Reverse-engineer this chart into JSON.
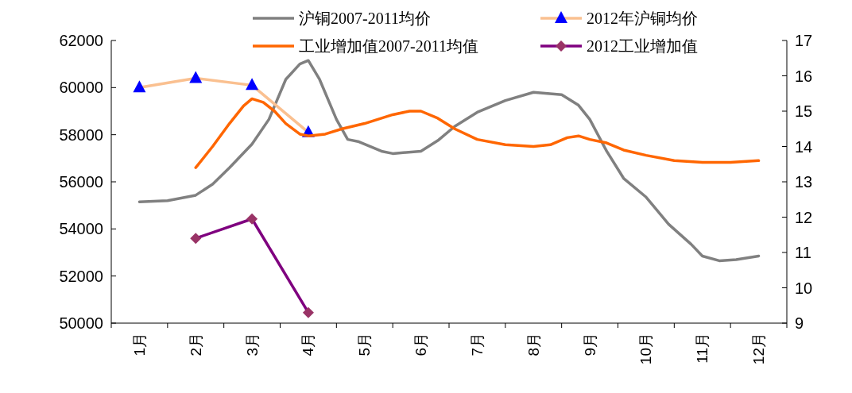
{
  "chart_data": {
    "type": "line",
    "xlim": [
      0.5,
      12.5
    ],
    "xticks": [
      {
        "value": 1,
        "label": "1月"
      },
      {
        "value": 2,
        "label": "2月"
      },
      {
        "value": 3,
        "label": "3月"
      },
      {
        "value": 4,
        "label": "4月"
      },
      {
        "value": 5,
        "label": "5月"
      },
      {
        "value": 6,
        "label": "6月"
      },
      {
        "value": 7,
        "label": "7月"
      },
      {
        "value": 8,
        "label": "8月"
      },
      {
        "value": 9,
        "label": "9月"
      },
      {
        "value": 10,
        "label": "10月"
      },
      {
        "value": 11,
        "label": "11月"
      },
      {
        "value": 12,
        "label": "12月"
      }
    ],
    "ylim": [
      50000,
      62000
    ],
    "yticks": [
      50000,
      52000,
      54000,
      56000,
      58000,
      60000,
      62000
    ],
    "y2lim": [
      9,
      17
    ],
    "y2ticks": [
      9,
      10,
      11,
      12,
      13,
      14,
      15,
      16,
      17
    ],
    "legend": "top",
    "grid": false,
    "series": [
      {
        "name": "沪铜2007-2011均价",
        "color": "#808080",
        "marker": "none",
        "x": [
          1,
          1.5,
          2,
          2.3,
          2.6,
          3,
          3.3,
          3.6,
          3.85,
          4,
          4.2,
          4.5,
          4.7,
          4.9,
          5.3,
          5.5,
          6,
          6.3,
          6.6,
          7,
          7.5,
          8,
          8.5,
          8.8,
          9,
          9.3,
          9.6,
          10,
          10.4,
          10.8,
          11,
          11.3,
          11.6,
          12
        ],
        "values": [
          55150,
          55200,
          55430,
          55900,
          56600,
          57600,
          58650,
          60350,
          61000,
          61150,
          60350,
          58650,
          57800,
          57700,
          57300,
          57200,
          57300,
          57750,
          58350,
          58950,
          59450,
          59800,
          59700,
          59250,
          58650,
          57300,
          56150,
          55350,
          54200,
          53350,
          52850,
          52650,
          52700,
          52850
        ]
      },
      {
        "name": "2012年沪铜均价",
        "color": "#fac090",
        "colors": [
          "#0000ff",
          "#0000ff",
          "#0000ff",
          "#0000ff"
        ],
        "marker": "triangle",
        "x": [
          1,
          2,
          3,
          4
        ],
        "values": [
          60000,
          60400,
          60100,
          58100
        ]
      },
      {
        "name": "工业增加值2007-2011均值",
        "color": "#ff6600",
        "marker": "none",
        "axis": "y2",
        "x": [
          2,
          2.3,
          2.6,
          2.85,
          3,
          3.2,
          3.4,
          3.6,
          3.85,
          4,
          4.3,
          4.6,
          5,
          5.5,
          5.8,
          6,
          6.3,
          6.6,
          7,
          7.5,
          8,
          8.3,
          8.6,
          8.8,
          9,
          9.3,
          9.6,
          10,
          10.5,
          11,
          11.5,
          12
        ],
        "values": [
          13.4,
          14.0,
          14.65,
          15.15,
          15.35,
          15.25,
          15.0,
          14.65,
          14.35,
          14.3,
          14.35,
          14.5,
          14.65,
          14.9,
          15.0,
          15.0,
          14.8,
          14.5,
          14.2,
          14.05,
          14.0,
          14.05,
          14.25,
          14.3,
          14.2,
          14.1,
          13.9,
          13.75,
          13.6,
          13.55,
          13.55,
          13.6
        ]
      },
      {
        "name": "2012工业增加值",
        "color": "#7f007f",
        "colors": [
          "#993366",
          "#993366",
          "#993366"
        ],
        "marker": "diamond",
        "axis": "y2",
        "x": [
          2,
          3,
          4
        ],
        "values": [
          11.4,
          11.95,
          9.3
        ]
      }
    ]
  }
}
